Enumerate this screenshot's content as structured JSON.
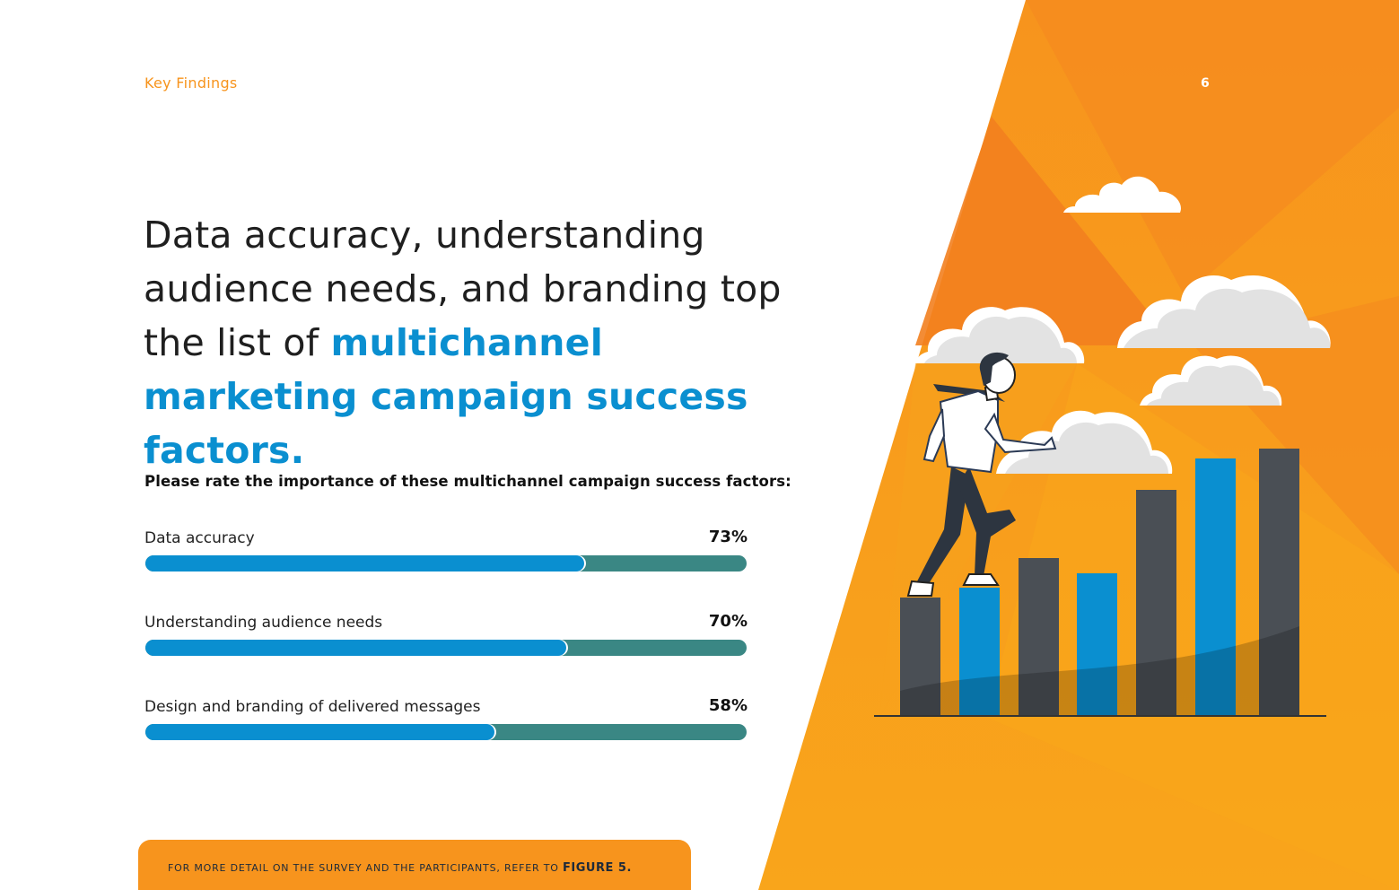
{
  "header": {
    "section_label": "Key Findings",
    "page_number": "6"
  },
  "headline": {
    "plain": "Data accuracy, understanding audience needs, and branding top the list of ",
    "highlight": "multichannel marketing campaign success factors."
  },
  "chart_data": {
    "type": "bar",
    "title": "Please rate the importance of these multichannel campaign success factors:",
    "orientation": "horizontal",
    "categories": [
      "Data accuracy",
      "Understanding audience needs",
      "Design and branding of delivered messages"
    ],
    "values": [
      73,
      70,
      58
    ],
    "value_labels": [
      "73%",
      "70%",
      "58%"
    ],
    "xlim": [
      0,
      100
    ],
    "colors": {
      "fill": "#0a8fd0",
      "track": "#3a8784"
    }
  },
  "footnote": {
    "text": "For more detail on the survey and the participants, refer to",
    "reference": "FIGURE 5."
  },
  "colors": {
    "accent_orange": "#f7941d",
    "accent_blue": "#0a8fd0",
    "dark_bar": "#4a4f55"
  },
  "illustration": {
    "subject": "businessman-climbing-bar-chart",
    "icons": [
      "cloud-icon",
      "businessman-figure",
      "staircase-bar-chart"
    ]
  }
}
